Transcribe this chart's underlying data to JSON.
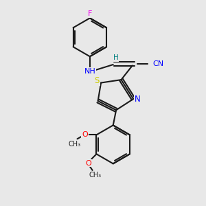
{
  "bg_color": "#e8e8e8",
  "bond_color": "#1a1a1a",
  "F_color": "#ee00ee",
  "N_color": "#0000ff",
  "S_color": "#cccc00",
  "O_color": "#ff0000",
  "H_color": "#008080",
  "CN_color": "#0000ff",
  "line_width": 1.5,
  "dbo": 0.08,
  "figsize": [
    3.0,
    3.0
  ],
  "dpi": 100,
  "xlim": [
    0,
    10
  ],
  "ylim": [
    0,
    10
  ]
}
